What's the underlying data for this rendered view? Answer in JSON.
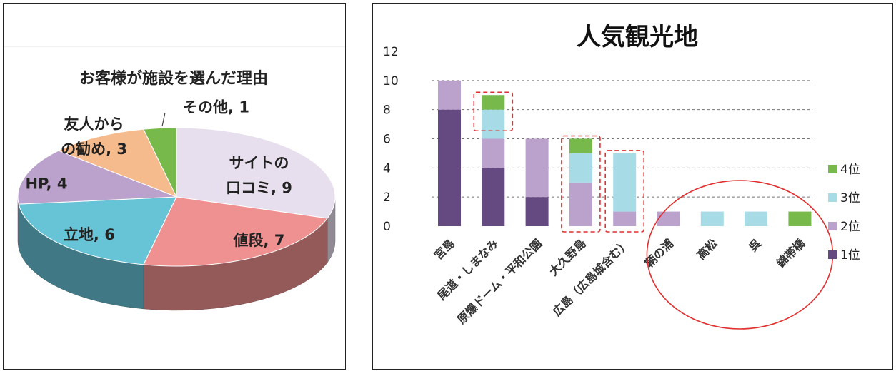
{
  "colors": {
    "purple": "#654a82",
    "lavender": "#bba2cc",
    "lightblue": "#a7dce6",
    "green": "#77b94a",
    "teal": "#67c3d6",
    "salmon": "#ee9190",
    "peach": "#f5bb8d",
    "pale_lavender": "#e7dfed",
    "annotation": "#e03030"
  },
  "chart_data": [
    {
      "type": "pie",
      "title": "お客様が施設を選んだ理由",
      "slices": [
        {
          "name": "サイトの口コミ",
          "value": 9,
          "label_lines": [
            "サイトの",
            "口コミ, 9"
          ],
          "color": "#e7dfed"
        },
        {
          "name": "値段",
          "value": 7,
          "label_lines": [
            "値段, 7"
          ],
          "color": "#ee9190"
        },
        {
          "name": "立地",
          "value": 6,
          "label_lines": [
            "立地, 6"
          ],
          "color": "#67c3d6"
        },
        {
          "name": "HP",
          "value": 4,
          "label_lines": [
            "HP, 4"
          ],
          "color": "#bba2cc"
        },
        {
          "name": "友人からの勧め",
          "value": 3,
          "label_lines": [
            "友人から",
            "の勧め, 3"
          ],
          "color": "#f5bb8d"
        },
        {
          "name": "その他",
          "value": 1,
          "label_lines": [
            "その他, 1"
          ],
          "color": "#77b94a"
        }
      ]
    },
    {
      "type": "bar",
      "stacked": true,
      "title": "人気観光地",
      "categories": [
        "宮島",
        "尾道・しまなみ",
        "原爆ドーム・平和公園",
        "大久野島",
        "広島（広島城含む）",
        "鞆の浦",
        "高松",
        "呉",
        "錦帯橋"
      ],
      "series": [
        {
          "name": "1位",
          "color": "#654a82",
          "values": [
            8,
            4,
            2,
            0,
            0,
            0,
            0,
            0,
            0
          ]
        },
        {
          "name": "2位",
          "color": "#bba2cc",
          "values": [
            2,
            2,
            4,
            3,
            1,
            1,
            0,
            0,
            0
          ]
        },
        {
          "name": "3位",
          "color": "#a7dce6",
          "values": [
            0,
            2,
            0,
            2,
            4,
            0,
            1,
            1,
            0
          ]
        },
        {
          "name": "4位",
          "color": "#77b94a",
          "values": [
            0,
            1,
            0,
            1,
            0,
            0,
            0,
            0,
            1
          ]
        }
      ],
      "ylim": [
        0,
        12
      ],
      "yticks": [
        "0",
        "2",
        "4",
        "6",
        "8",
        "10",
        "12"
      ],
      "grid": true,
      "legend": "right",
      "legend_labels": [
        "4位",
        "3位",
        "2位",
        "1位"
      ],
      "highlighted_categories": [
        "尾道・しまなみ",
        "大久野島",
        "広島（広島城含む）"
      ],
      "circled_categories": [
        "鞆の浦",
        "高松",
        "呉",
        "錦帯橋"
      ]
    }
  ]
}
